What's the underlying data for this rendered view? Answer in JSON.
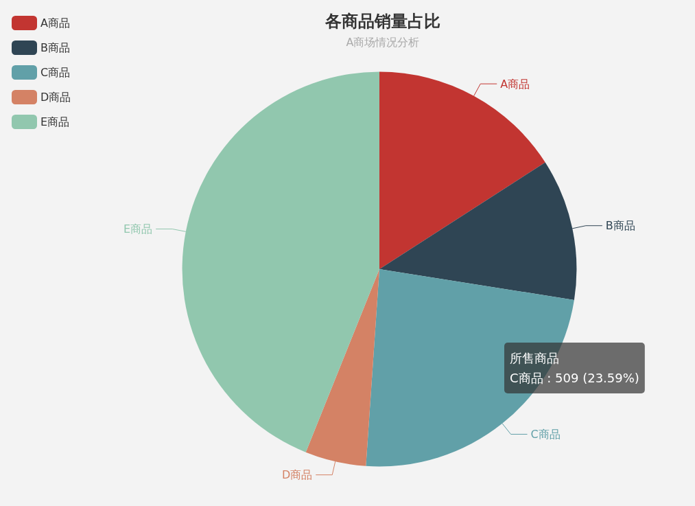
{
  "chart_data": {
    "type": "pie",
    "title": "各商品销量占比",
    "subtitle": "A商场情况分析",
    "categories": [
      "A商品",
      "B商品",
      "C商品",
      "D商品",
      "E商品"
    ],
    "values": [
      15.9,
      11.6,
      23.59,
      5.0,
      43.91
    ],
    "colors": [
      "#c23531",
      "#2f4554",
      "#61a0a8",
      "#d48265",
      "#91c7ae"
    ],
    "legend": "top left",
    "annotations": [
      "所售商品",
      "C商品 : 509 (23.59%)"
    ]
  }
}
